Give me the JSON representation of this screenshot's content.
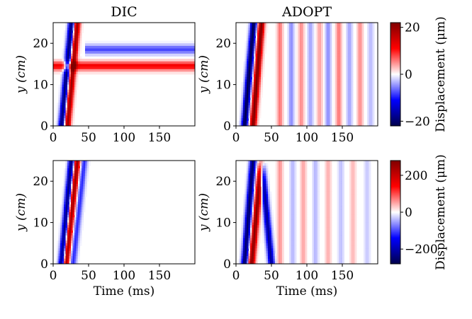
{
  "figure": {
    "col_titles": [
      "DIC",
      "ADOPT"
    ],
    "colorbar_label_top": "Displacement (μm)",
    "colorbar_label_bottom": "Displacement (μm)"
  },
  "chart_data": [
    {
      "type": "heatmap",
      "panel": "top-left",
      "title": "DIC",
      "xlabel": "",
      "ylabel": "y (cm)",
      "xlim": [
        0,
        200
      ],
      "ylim": [
        0,
        25
      ],
      "xticks": [
        0,
        50,
        100,
        150
      ],
      "yticks": [
        0,
        10,
        20
      ],
      "colormap": "seismic",
      "clim": [
        -22,
        22
      ],
      "features": [
        {
          "kind": "wavefront",
          "polarity": "negative",
          "x_start": 12,
          "y_start": 0,
          "x_end": 26,
          "y_end": 25,
          "peak": -20
        },
        {
          "kind": "wavefront",
          "polarity": "positive",
          "x_start": 20,
          "y_start": 0,
          "x_end": 34,
          "y_end": 25,
          "peak": 20
        },
        {
          "kind": "band",
          "polarity": "positive",
          "y": 14.5,
          "x_from": 0,
          "x_to": 200,
          "peak": 12
        },
        {
          "kind": "band",
          "polarity": "negative",
          "y": 18.5,
          "x_from": 45,
          "x_to": 200,
          "peak": -8
        }
      ]
    },
    {
      "type": "heatmap",
      "panel": "top-right",
      "title": "ADOPT",
      "xlabel": "",
      "ylabel": "y (cm)",
      "xlim": [
        0,
        200
      ],
      "ylim": [
        0,
        25
      ],
      "xticks": [
        0,
        50,
        100,
        150
      ],
      "yticks": [
        0,
        10,
        20
      ],
      "colormap": "seismic",
      "clim": [
        -22,
        22
      ],
      "colorbar": {
        "ticks": [
          20,
          0,
          -20
        ],
        "tick_labels": [
          "20",
          "0",
          "−20"
        ],
        "label": "Displacement (μm)"
      },
      "features": [
        {
          "kind": "wavefront",
          "polarity": "negative",
          "x_start": 12,
          "y_start": 0,
          "x_end": 25,
          "y_end": 25,
          "peak": -22
        },
        {
          "kind": "wavefront",
          "polarity": "positive",
          "x_start": 24,
          "y_start": 0,
          "x_end": 36,
          "y_end": 25,
          "peak": 22
        },
        {
          "kind": "vertical_bands",
          "x": [
            62,
            78,
            92,
            105,
            118,
            130,
            145,
            160,
            175,
            190
          ],
          "amplitudes": [
            6,
            -5,
            5,
            -4,
            4,
            -5,
            6,
            -4,
            5,
            -3
          ]
        }
      ]
    },
    {
      "type": "heatmap",
      "panel": "bottom-left",
      "title": "",
      "xlabel": "Time (ms)",
      "ylabel": "y (cm)",
      "xlim": [
        0,
        200
      ],
      "ylim": [
        0,
        25
      ],
      "xticks": [
        0,
        50,
        100,
        150
      ],
      "yticks": [
        0,
        10,
        20
      ],
      "colormap": "seismic",
      "clim": [
        -280,
        280
      ],
      "features": [
        {
          "kind": "wavefront",
          "polarity": "negative",
          "x_start": 12,
          "y_start": 0,
          "x_end": 26,
          "y_end": 25,
          "peak": -250
        },
        {
          "kind": "wavefront",
          "polarity": "positive",
          "x_start": 18,
          "y_start": 0,
          "x_end": 34,
          "y_end": 25,
          "peak": 260
        },
        {
          "kind": "wavefront",
          "polarity": "negative",
          "x_start": 28,
          "y_start": 0,
          "x_end": 44,
          "y_end": 25,
          "peak": -120
        }
      ]
    },
    {
      "type": "heatmap",
      "panel": "bottom-right",
      "title": "",
      "xlabel": "Time (ms)",
      "ylabel": "y (cm)",
      "xlim": [
        0,
        200
      ],
      "ylim": [
        0,
        25
      ],
      "xticks": [
        0,
        50,
        100,
        150
      ],
      "yticks": [
        0,
        10,
        20
      ],
      "colormap": "seismic",
      "clim": [
        -280,
        280
      ],
      "colorbar": {
        "ticks": [
          200,
          0,
          -200
        ],
        "tick_labels": [
          "200",
          "0",
          "−200"
        ],
        "label": "Displacement (μm)"
      },
      "features": [
        {
          "kind": "wavefront",
          "polarity": "negative",
          "x_start": 12,
          "y_start": 0,
          "x_end": 24,
          "y_end": 25,
          "peak": -260
        },
        {
          "kind": "wavefront",
          "polarity": "positive",
          "x_start": 22,
          "y_start": 0,
          "x_end": 36,
          "y_end": 25,
          "peak": 270
        },
        {
          "kind": "wavefront",
          "polarity": "negative",
          "x_start": 50,
          "y_start": 0,
          "x_end": 36,
          "y_end": 25,
          "peak": -220
        },
        {
          "kind": "vertical_bands",
          "x": [
            62,
            80,
            95,
            112,
            130,
            148,
            165,
            185
          ],
          "amplitudes": [
            60,
            -40,
            50,
            -40,
            45,
            -35,
            40,
            -30
          ]
        }
      ]
    }
  ]
}
